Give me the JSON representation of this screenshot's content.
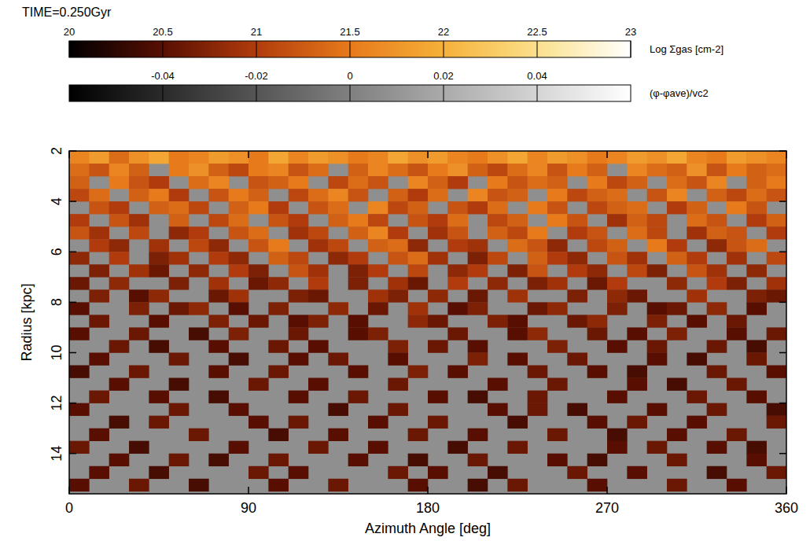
{
  "chart_data": {
    "type": "heatmap",
    "title": "TIME=0.250Gyr",
    "x_label": "Azimuth Angle [deg]",
    "y_label": "Radius [kpc]",
    "x": [
      5,
      15,
      25,
      35,
      45,
      55,
      65,
      75,
      85,
      95,
      105,
      115,
      125,
      135,
      145,
      155,
      165,
      175,
      185,
      195,
      205,
      215,
      225,
      235,
      245,
      255,
      265,
      275,
      285,
      295,
      305,
      315,
      325,
      335,
      345,
      355
    ],
    "y": [
      2.25,
      2.75,
      3.25,
      3.75,
      4.25,
      4.75,
      5.25,
      5.75,
      6.25,
      6.75,
      7.25,
      7.75,
      8.25,
      8.75,
      9.25,
      9.75,
      10.25,
      10.75,
      11.25,
      11.75,
      12.25,
      12.75,
      13.25,
      13.75,
      14.25,
      14.75,
      15.25
    ],
    "values": [
      [
        21.6,
        21.8,
        21.4,
        21.7,
        21.9,
        21.5,
        21.6,
        21.8,
        21.7,
        21.5,
        21.9,
        21.6,
        21.8,
        21.7,
        21.5,
        21.6,
        21.9,
        21.7,
        21.8,
        21.6,
        21.5,
        21.7,
        21.9,
        21.6,
        21.8,
        21.7,
        21.5,
        21.6,
        21.8,
        21.7,
        21.9,
        21.6,
        21.5,
        21.8,
        21.7,
        21.6
      ],
      [
        21.4,
        21.2,
        21.6,
        21.3,
        null,
        21.5,
        21.7,
        21.3,
        21.1,
        21.5,
        21.6,
        21.2,
        21.4,
        null,
        21.3,
        21.6,
        21.4,
        21.2,
        21.5,
        21.7,
        21.3,
        21.1,
        21.4,
        21.6,
        21.2,
        21.5,
        21.3,
        null,
        21.6,
        21.4,
        21.3,
        21.7,
        21.2,
        21.5,
        21.3,
        21.4
      ],
      [
        21.3,
        null,
        21.5,
        21.2,
        21.0,
        null,
        21.4,
        21.6,
        null,
        21.2,
        21.3,
        21.5,
        null,
        21.1,
        21.4,
        21.2,
        null,
        21.6,
        21.3,
        21.0,
        null,
        21.5,
        21.2,
        21.4,
        21.3,
        null,
        21.5,
        21.1,
        21.3,
        null,
        21.4,
        21.2,
        21.6,
        null,
        21.3,
        21.5
      ],
      [
        21.1,
        21.4,
        null,
        21.3,
        21.5,
        21.0,
        null,
        21.2,
        21.5,
        21.3,
        null,
        21.1,
        21.4,
        21.6,
        21.2,
        null,
        21.3,
        21.0,
        21.4,
        null,
        21.6,
        21.2,
        21.3,
        null,
        21.5,
        21.1,
        21.3,
        21.4,
        null,
        21.2,
        21.6,
        null,
        21.3,
        21.1,
        21.4,
        21.2
      ],
      [
        null,
        21.2,
        21.0,
        null,
        21.3,
        21.4,
        21.1,
        null,
        21.3,
        21.5,
        21.0,
        null,
        21.2,
        21.4,
        null,
        21.6,
        21.1,
        21.3,
        null,
        21.2,
        21.0,
        21.4,
        null,
        21.5,
        21.2,
        null,
        21.1,
        21.3,
        21.4,
        null,
        21.0,
        21.3,
        null,
        21.5,
        21.2,
        null
      ],
      [
        21.0,
        null,
        21.2,
        20.9,
        null,
        21.3,
        null,
        21.1,
        21.4,
        null,
        21.2,
        21.0,
        null,
        21.3,
        21.5,
        21.1,
        null,
        21.2,
        21.0,
        21.4,
        null,
        21.1,
        21.3,
        null,
        21.5,
        21.2,
        null,
        20.9,
        21.3,
        21.1,
        null,
        21.4,
        21.2,
        null,
        21.0,
        21.3
      ],
      [
        21.2,
        20.9,
        null,
        21.1,
        null,
        20.8,
        21.0,
        null,
        21.2,
        21.4,
        null,
        20.9,
        21.1,
        null,
        21.3,
        21.6,
        21.0,
        null,
        20.9,
        21.2,
        null,
        21.3,
        21.1,
        21.5,
        null,
        21.0,
        21.2,
        null,
        21.4,
        21.1,
        null,
        20.9,
        21.3,
        21.2,
        null,
        21.0
      ],
      [
        null,
        21.0,
        20.8,
        null,
        20.9,
        null,
        21.1,
        20.8,
        null,
        21.2,
        21.5,
        null,
        20.9,
        21.1,
        null,
        21.3,
        21.4,
        20.8,
        null,
        21.0,
        20.9,
        null,
        21.4,
        21.2,
        20.8,
        null,
        21.1,
        21.3,
        null,
        21.5,
        21.0,
        null,
        20.8,
        21.2,
        21.4,
        null
      ],
      [
        20.8,
        null,
        21.0,
        null,
        20.7,
        20.9,
        null,
        21.0,
        20.8,
        null,
        21.3,
        21.1,
        null,
        20.8,
        21.0,
        null,
        21.2,
        21.4,
        20.9,
        null,
        20.7,
        21.1,
        null,
        21.3,
        21.0,
        20.8,
        null,
        21.2,
        20.9,
        null,
        21.3,
        21.0,
        null,
        20.9,
        null,
        21.1
      ],
      [
        null,
        20.7,
        null,
        20.9,
        20.6,
        null,
        20.8,
        null,
        21.0,
        20.7,
        null,
        21.2,
        20.9,
        null,
        20.7,
        21.0,
        null,
        21.1,
        null,
        20.8,
        21.0,
        null,
        20.7,
        21.2,
        null,
        21.0,
        20.8,
        null,
        21.1,
        20.7,
        null,
        21.2,
        20.9,
        null,
        20.8,
        null
      ],
      [
        20.6,
        null,
        20.8,
        null,
        null,
        20.7,
        null,
        20.9,
        null,
        20.6,
        20.8,
        null,
        21.0,
        null,
        20.7,
        null,
        20.9,
        20.6,
        null,
        21.0,
        null,
        20.8,
        null,
        20.7,
        20.9,
        null,
        20.6,
        21.0,
        null,
        null,
        20.8,
        null,
        21.0,
        20.7,
        null,
        20.9
      ],
      [
        null,
        20.7,
        null,
        20.5,
        20.8,
        null,
        null,
        20.6,
        20.9,
        null,
        null,
        20.7,
        20.6,
        null,
        null,
        20.9,
        20.7,
        null,
        20.8,
        null,
        20.6,
        null,
        20.9,
        null,
        null,
        20.7,
        null,
        20.8,
        20.6,
        null,
        null,
        20.9,
        null,
        null,
        20.7,
        20.6
      ],
      [
        20.5,
        null,
        null,
        20.7,
        null,
        20.6,
        20.8,
        null,
        20.5,
        null,
        20.7,
        null,
        null,
        20.8,
        null,
        20.6,
        null,
        20.9,
        null,
        20.5,
        20.7,
        null,
        null,
        20.6,
        20.8,
        null,
        null,
        20.7,
        null,
        20.5,
        20.6,
        null,
        20.8,
        null,
        20.5,
        null
      ],
      [
        null,
        20.6,
        null,
        null,
        20.5,
        null,
        null,
        20.7,
        null,
        20.6,
        null,
        20.5,
        20.7,
        null,
        20.5,
        null,
        null,
        20.8,
        20.6,
        null,
        null,
        20.7,
        20.5,
        null,
        null,
        20.6,
        20.8,
        null,
        null,
        20.7,
        null,
        20.5,
        null,
        20.6,
        null,
        null
      ],
      [
        20.5,
        null,
        null,
        20.6,
        null,
        null,
        20.4,
        null,
        20.7,
        null,
        null,
        20.6,
        null,
        null,
        20.5,
        20.7,
        null,
        null,
        null,
        20.6,
        null,
        null,
        20.5,
        20.8,
        null,
        null,
        20.6,
        null,
        20.5,
        null,
        20.7,
        null,
        null,
        20.5,
        null,
        20.6
      ],
      [
        null,
        null,
        20.6,
        null,
        20.4,
        null,
        null,
        20.5,
        null,
        null,
        20.6,
        null,
        20.5,
        null,
        null,
        null,
        20.7,
        null,
        20.6,
        null,
        20.5,
        null,
        null,
        null,
        20.7,
        null,
        null,
        20.5,
        null,
        20.6,
        null,
        null,
        20.6,
        null,
        20.4,
        null
      ],
      [
        null,
        20.5,
        null,
        null,
        null,
        20.6,
        null,
        null,
        20.4,
        null,
        null,
        20.5,
        null,
        20.6,
        null,
        null,
        20.5,
        null,
        null,
        null,
        20.7,
        null,
        20.5,
        null,
        null,
        20.6,
        null,
        null,
        null,
        20.5,
        null,
        20.4,
        null,
        null,
        20.6,
        null
      ],
      [
        20.4,
        null,
        null,
        20.6,
        null,
        null,
        null,
        20.5,
        null,
        null,
        20.6,
        null,
        null,
        null,
        20.5,
        null,
        null,
        20.7,
        null,
        20.5,
        null,
        null,
        null,
        20.6,
        null,
        null,
        20.5,
        null,
        20.4,
        null,
        null,
        null,
        20.6,
        null,
        null,
        20.5
      ],
      [
        null,
        null,
        20.5,
        null,
        null,
        20.4,
        null,
        null,
        null,
        20.6,
        null,
        null,
        20.5,
        null,
        null,
        null,
        20.6,
        null,
        null,
        null,
        null,
        20.5,
        null,
        null,
        20.6,
        null,
        null,
        null,
        20.5,
        null,
        20.4,
        null,
        null,
        20.6,
        null,
        null
      ],
      [
        null,
        20.6,
        null,
        null,
        20.5,
        null,
        null,
        20.4,
        null,
        null,
        null,
        20.5,
        null,
        null,
        20.6,
        null,
        null,
        null,
        20.5,
        null,
        20.4,
        null,
        null,
        20.6,
        null,
        null,
        null,
        20.5,
        null,
        null,
        null,
        20.6,
        null,
        null,
        20.5,
        null
      ],
      [
        20.5,
        null,
        null,
        null,
        null,
        20.6,
        null,
        null,
        20.5,
        null,
        null,
        null,
        null,
        20.4,
        null,
        null,
        20.6,
        null,
        null,
        null,
        null,
        20.5,
        null,
        20.6,
        null,
        20.4,
        null,
        null,
        null,
        20.5,
        null,
        null,
        20.6,
        null,
        null,
        20.4
      ],
      [
        null,
        null,
        20.4,
        null,
        20.6,
        null,
        null,
        null,
        null,
        20.5,
        null,
        20.6,
        null,
        null,
        null,
        20.5,
        null,
        null,
        20.6,
        null,
        null,
        null,
        20.4,
        null,
        null,
        null,
        20.5,
        null,
        20.6,
        null,
        null,
        20.5,
        null,
        null,
        null,
        20.6
      ],
      [
        null,
        20.5,
        null,
        null,
        null,
        null,
        20.6,
        null,
        null,
        null,
        20.4,
        null,
        null,
        20.5,
        null,
        null,
        null,
        20.6,
        null,
        null,
        20.5,
        null,
        null,
        null,
        20.6,
        null,
        null,
        20.4,
        null,
        null,
        20.5,
        null,
        null,
        20.6,
        null,
        null
      ],
      [
        20.6,
        null,
        null,
        20.4,
        null,
        null,
        null,
        null,
        20.5,
        null,
        null,
        null,
        20.6,
        null,
        null,
        20.5,
        null,
        null,
        null,
        20.4,
        null,
        null,
        20.6,
        null,
        null,
        null,
        null,
        20.5,
        null,
        20.6,
        null,
        null,
        20.5,
        null,
        20.4,
        null
      ],
      [
        null,
        null,
        20.5,
        null,
        null,
        20.6,
        null,
        20.4,
        null,
        null,
        20.6,
        null,
        null,
        null,
        20.5,
        null,
        null,
        20.4,
        null,
        null,
        20.6,
        null,
        null,
        null,
        20.5,
        null,
        20.4,
        null,
        null,
        null,
        20.6,
        null,
        null,
        null,
        20.5,
        null
      ],
      [
        null,
        20.5,
        null,
        null,
        20.4,
        null,
        null,
        null,
        null,
        20.6,
        null,
        20.5,
        null,
        null,
        null,
        null,
        20.6,
        null,
        20.5,
        null,
        null,
        20.4,
        null,
        null,
        null,
        20.6,
        null,
        null,
        20.5,
        null,
        null,
        null,
        20.4,
        null,
        null,
        20.6
      ],
      [
        20.5,
        null,
        null,
        20.6,
        null,
        null,
        20.4,
        null,
        null,
        null,
        20.5,
        null,
        null,
        20.6,
        null,
        null,
        null,
        20.5,
        null,
        null,
        20.4,
        null,
        20.6,
        null,
        null,
        null,
        20.5,
        null,
        null,
        null,
        20.6,
        null,
        null,
        20.5,
        null,
        null
      ]
    ],
    "xlim": [
      0,
      360
    ],
    "ylim": [
      2,
      15.6
    ],
    "xticks": [
      0,
      90,
      180,
      270,
      360
    ],
    "yticks": [
      2,
      4,
      6,
      8,
      10,
      12,
      14
    ],
    "colorbars": [
      {
        "label": "Log Σgas [cm-2]",
        "range": [
          20,
          23
        ],
        "ticks": [
          20,
          20.5,
          21,
          21.5,
          22,
          22.5,
          23
        ]
      },
      {
        "label": "(φ-φave)/vc2",
        "range": [
          -0.06,
          0.06
        ],
        "ticks": [
          -0.04,
          -0.02,
          0,
          0.02,
          0.04
        ]
      }
    ]
  }
}
